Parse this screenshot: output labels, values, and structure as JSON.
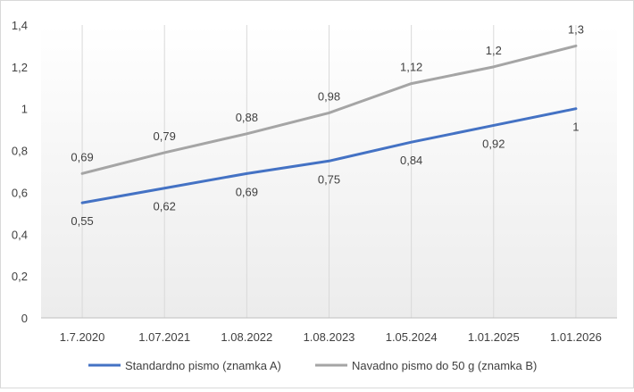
{
  "chart_data": {
    "type": "line",
    "categories": [
      "1.7.2020",
      "1.07.2021",
      "1.08.2022",
      "1.08.2023",
      "1.05.2024",
      "1.01.2025",
      "1.01.2026"
    ],
    "series": [
      {
        "name": "Standardno pismo (znamka A)",
        "color": "#4472c4",
        "values": [
          0.55,
          0.62,
          0.69,
          0.75,
          0.84,
          0.92,
          1
        ],
        "labels": [
          "0,55",
          "0,62",
          "0,69",
          "0,75",
          "0,84",
          "0,92",
          "1"
        ],
        "label_position": "below"
      },
      {
        "name": "Navadno pismo do 50 g (znamka B)",
        "color": "#a5a5a5",
        "values": [
          0.69,
          0.79,
          0.88,
          0.98,
          1.12,
          1.2,
          1.3
        ],
        "labels": [
          "0,69",
          "0,79",
          "0,88",
          "0,98",
          "1,12",
          "1,2",
          "1,3"
        ],
        "label_position": "above"
      }
    ],
    "ylim": [
      0,
      1.4
    ],
    "yticks": [
      0,
      0.2,
      0.4,
      0.6,
      0.8,
      1,
      1.2,
      1.4
    ],
    "ytick_labels": [
      "0",
      "0,2",
      "0,4",
      "0,6",
      "0,8",
      "1",
      "1,2",
      "1,4"
    ],
    "grid": "vertical",
    "legend_position": "bottom",
    "title": "",
    "xlabel": "",
    "ylabel": ""
  }
}
